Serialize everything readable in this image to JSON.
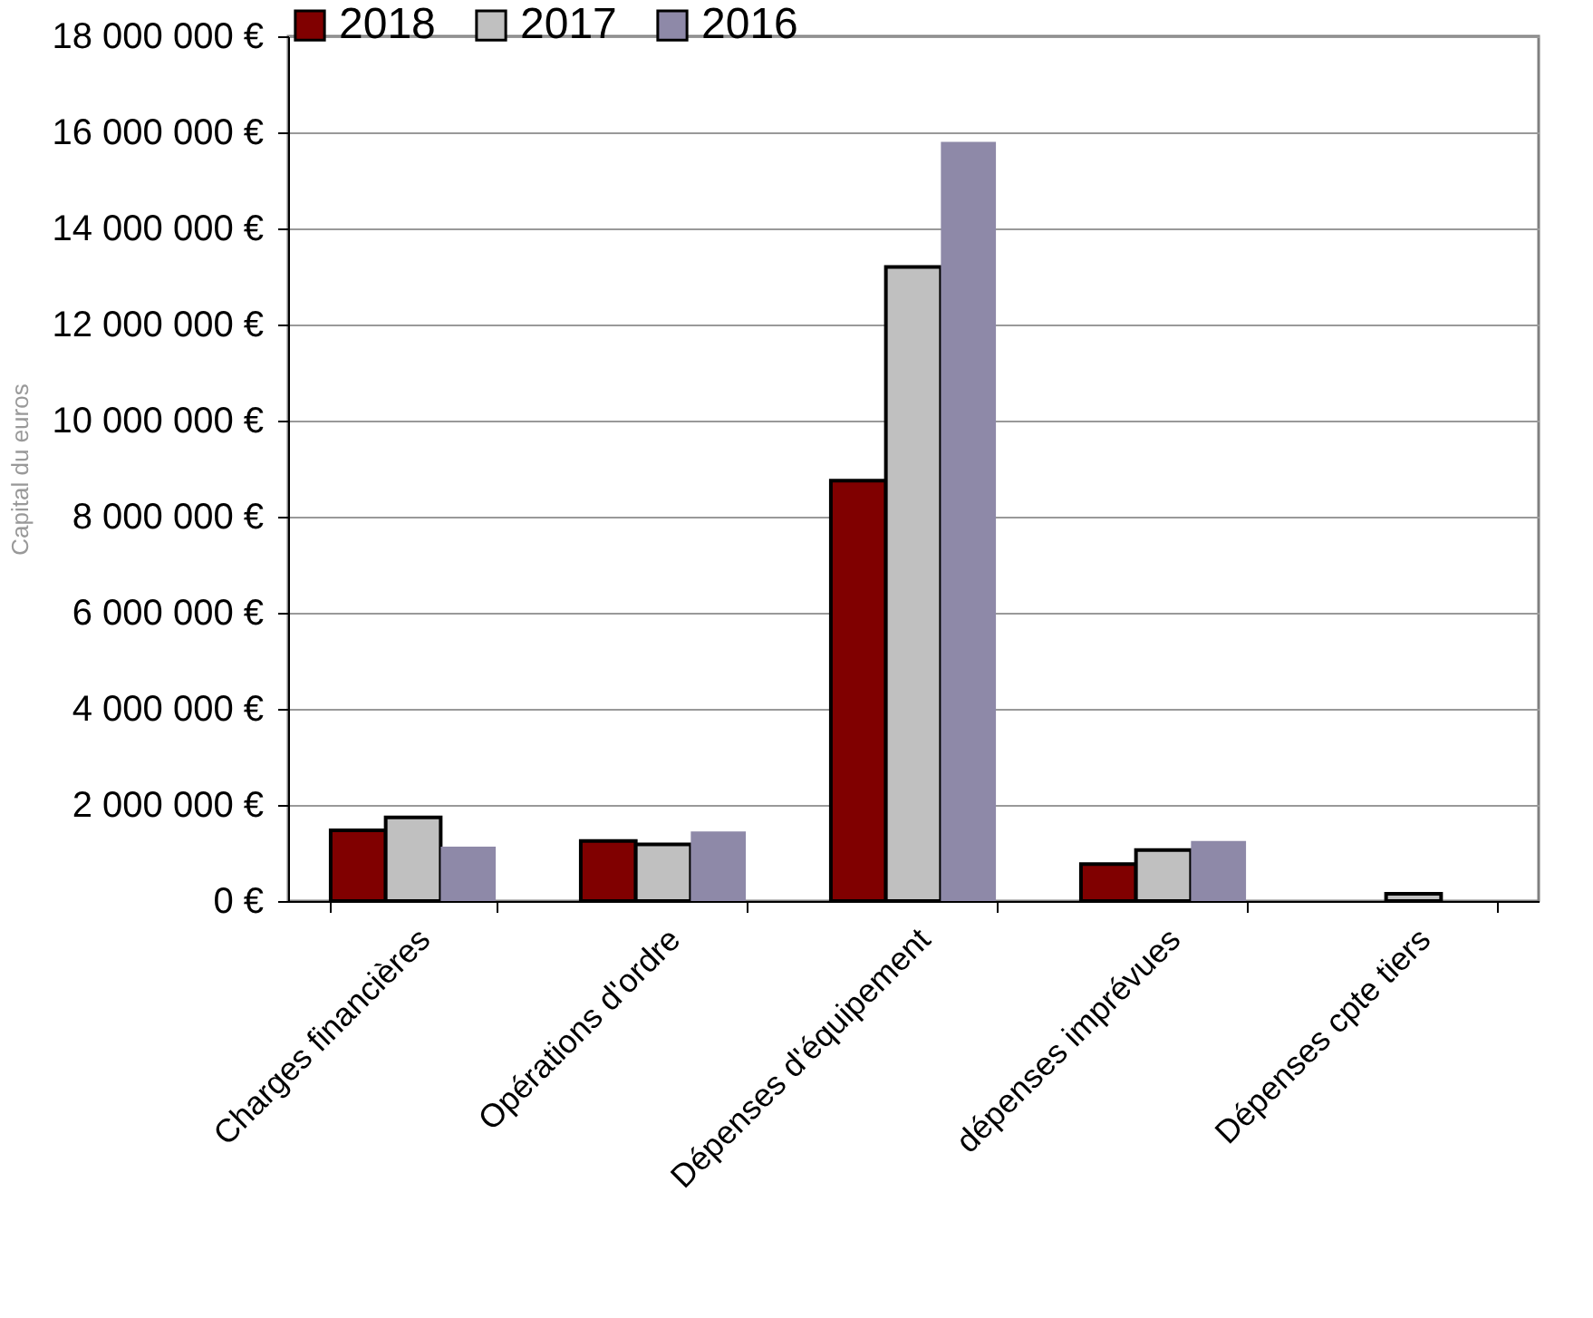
{
  "chart_data": {
    "type": "bar",
    "ylabel": "Capital du euros",
    "categories": [
      "Charges financières",
      "Opérations d'ordre",
      "Dépenses d'équipement",
      "dépenses imprévues",
      "Dépenses cpte tiers"
    ],
    "series": [
      {
        "name": "2018",
        "color": "#800000",
        "values": [
          1470000,
          1250000,
          8750000,
          770000,
          null
        ]
      },
      {
        "name": "2017",
        "color": "#c0c0c0",
        "values": [
          1740000,
          1180000,
          13200000,
          1060000,
          150000
        ]
      },
      {
        "name": "2016",
        "color": "#8e89a8",
        "values": [
          1130000,
          1450000,
          15800000,
          1250000,
          null
        ]
      }
    ],
    "ylim": [
      0,
      18000000
    ],
    "yticks": [
      {
        "value": 0,
        "label": "0 €"
      },
      {
        "value": 2000000,
        "label": "2 000 000 €"
      },
      {
        "value": 4000000,
        "label": "4 000 000 €"
      },
      {
        "value": 6000000,
        "label": "6 000 000 €"
      },
      {
        "value": 8000000,
        "label": "8 000 000 €"
      },
      {
        "value": 10000000,
        "label": "10 000 000 €"
      },
      {
        "value": 12000000,
        "label": "12 000 000 €"
      },
      {
        "value": 14000000,
        "label": "14 000 000 €"
      },
      {
        "value": 16000000,
        "label": "16 000 000 €"
      },
      {
        "value": 18000000,
        "label": "18 000 000 €"
      }
    ],
    "grid": "y",
    "legend": "top"
  }
}
